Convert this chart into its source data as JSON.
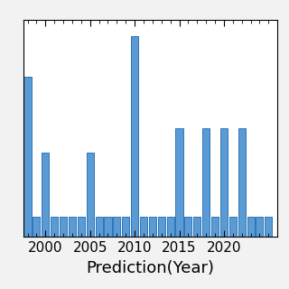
{
  "title": "",
  "xlabel": "Prediction(Year)",
  "ylabel": "",
  "bar_color": "#5b9bd5",
  "bar_edgecolor": "#2e75b6",
  "background_color": "#f2f2f2",
  "plot_bg_color": "#ffffff",
  "xlim": [
    1997.5,
    2026
  ],
  "ylim": [
    0,
    1.08
  ],
  "xticks": [
    2000,
    2005,
    2010,
    2015,
    2020
  ],
  "years": [
    1998,
    1999,
    2000,
    2001,
    2002,
    2003,
    2004,
    2005,
    2006,
    2007,
    2008,
    2009,
    2010,
    2011,
    2012,
    2013,
    2014,
    2015,
    2016,
    2017,
    2018,
    2019,
    2020,
    2021,
    2022,
    2023,
    2024,
    2025
  ],
  "values": [
    0.8,
    0.1,
    0.42,
    0.1,
    0.1,
    0.1,
    0.1,
    0.42,
    0.1,
    0.1,
    0.1,
    0.1,
    1.0,
    0.1,
    0.1,
    0.1,
    0.1,
    0.54,
    0.1,
    0.1,
    0.54,
    0.1,
    0.54,
    0.1,
    0.54,
    0.1,
    0.1,
    0.1
  ],
  "xlabel_fontsize": 13,
  "tick_fontsize": 11,
  "bar_width": 0.82
}
